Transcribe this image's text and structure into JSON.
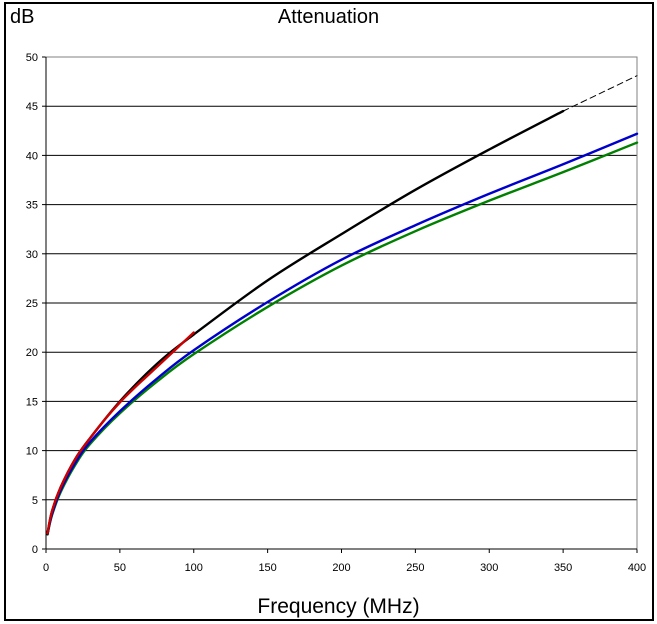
{
  "chart_data": {
    "type": "line",
    "title": "Attenuation",
    "ylabel": "dB",
    "xlabel": "Frequency (MHz)",
    "xlim": [
      0,
      400
    ],
    "ylim": [
      0,
      50
    ],
    "xticks": [
      0,
      50,
      100,
      150,
      200,
      250,
      300,
      350,
      400
    ],
    "yticks": [
      0,
      5,
      10,
      15,
      20,
      25,
      30,
      35,
      40,
      45,
      50
    ],
    "grid": "horizontal",
    "series": [
      {
        "color": "#cc0000",
        "style": "solid",
        "x": [
          1,
          4,
          10,
          20,
          30,
          40,
          50,
          60,
          70,
          80,
          90,
          100
        ],
        "y": [
          1.6,
          3.8,
          6.3,
          9.2,
          11.3,
          13.2,
          14.9,
          16.4,
          17.8,
          19.2,
          20.6,
          22.0
        ]
      },
      {
        "color": "#0000cc",
        "style": "solid",
        "x": [
          1,
          4,
          10,
          20,
          30,
          50,
          75,
          100,
          150,
          200,
          250,
          300,
          350,
          400
        ],
        "y": [
          1.5,
          3.5,
          6.0,
          8.8,
          10.9,
          14.0,
          17.3,
          20.2,
          25.1,
          29.4,
          32.9,
          36.1,
          39.1,
          42.2
        ]
      },
      {
        "color": "#008000",
        "style": "solid",
        "x": [
          1,
          4,
          10,
          20,
          30,
          50,
          75,
          100,
          150,
          200,
          250,
          300,
          350,
          400
        ],
        "y": [
          1.5,
          3.4,
          5.8,
          8.6,
          10.7,
          13.8,
          17.0,
          19.8,
          24.6,
          28.8,
          32.3,
          35.4,
          38.3,
          41.3
        ]
      },
      {
        "color": "#000000",
        "style": "solid",
        "x": [
          1,
          4,
          10,
          20,
          30,
          50,
          75,
          100,
          150,
          200,
          250,
          300,
          350
        ],
        "y": [
          1.5,
          3.8,
          6.3,
          9.2,
          11.3,
          15.0,
          18.8,
          21.8,
          27.3,
          32.0,
          36.5,
          40.6,
          44.5
        ]
      },
      {
        "color": "#000000",
        "style": "dashed",
        "x": [
          350,
          375,
          400
        ],
        "y": [
          44.5,
          46.3,
          48.1
        ]
      }
    ]
  }
}
